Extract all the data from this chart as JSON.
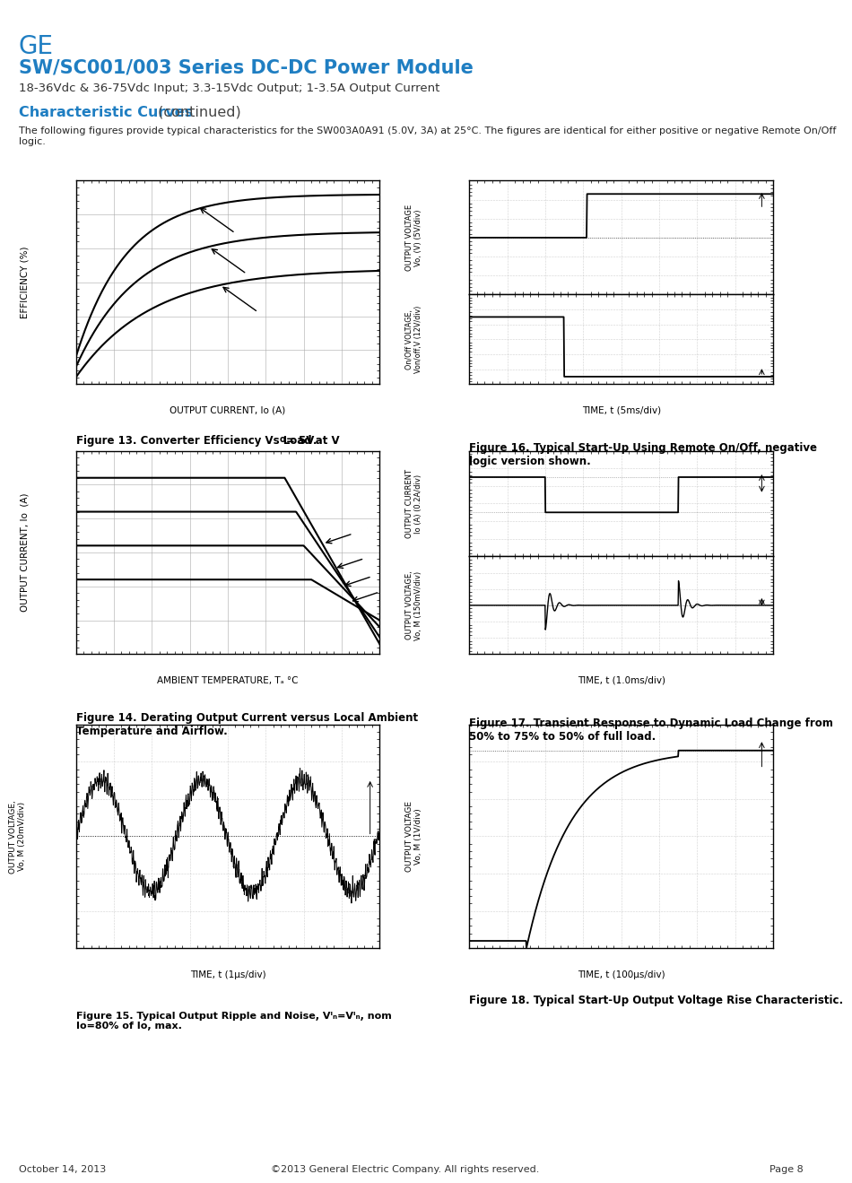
{
  "title_ge": "GE",
  "title_main": "SW/SC001/003 Series DC-DC Power Module",
  "title_sub": "18-36Vdc & 36-75Vdc Input; 3.3-15Vdc Output; 1-3.5A Output Current",
  "section_title": "Characteristic Curves",
  "section_subtitle": " (continued)",
  "body_text": "The following figures provide typical characteristics for the SW003A0A91 (5.0V, 3A) at 25°C. The figures are identical for either positive or negative Remote On/Off logic.",
  "fig13_xlabel": "OUTPUT CURRENT, Io (A)",
  "fig13_ylabel": "EFFICIENCY (%)",
  "fig13_caption_bold": "Figure 13. Converter Efficiency Vs Load at V",
  "fig13_caption_sub": "o",
  "fig13_caption_end": "= 5V.",
  "fig14_xlabel": "AMBIENT TEMPERATURE, Tₐ °C",
  "fig14_ylabel": "OUTPUT CURRENT, Io  (A)",
  "fig14_caption": "Figure 14. Derating Output Current versus Local Ambient\nTemperature and Airflow.",
  "fig15_xlabel": "TIME, t (1μs/div)",
  "fig15_ylabel_line1": "OUTPUT VOLTAGE,",
  "fig15_ylabel_line2": "Vo, M (20mV/div)",
  "fig15_caption": "Figure 15. Typical Output Ripple and Noise, Vᴵₙ=Vᴵₙ, nom\nIo=80% of Io, max.",
  "fig16_xlabel": "TIME, t (5ms/div)",
  "fig16_ylabel1_line1": "OUTPUT VOLTAGE",
  "fig16_ylabel1_line2": "Vo, (V) (5V/div)",
  "fig16_ylabel2_line1": "On/Off VOLTAGE,",
  "fig16_ylabel2_line2": "Von/off,V (12V/div)",
  "fig16_caption": "Figure 16. Typical Start-Up Using Remote On/Off, negative\nlogic version shown.",
  "fig17_xlabel": "TIME, t (1.0ms/div)",
  "fig17_ylabel1_line1": "OUTPUT CURRENT",
  "fig17_ylabel1_line2": "Io (A) (0.2A/div)",
  "fig17_ylabel2_line1": "OUTPUT VOLTAGE,",
  "fig17_ylabel2_line2": "Vo, M (150mV/div),",
  "fig17_caption": "Figure 17. Transient Response to Dynamic Load Change from\n50% to 75% to 50% of full load.",
  "fig18_xlabel": "TIME, t (100μs/div)",
  "fig18_ylabel_line1": "OUTPUT VOLTAGE",
  "fig18_ylabel_line2": "Vo, M (1V/div)",
  "fig18_caption": "Figure 18. Typical Start-Up Output Voltage Rise Characteristic.",
  "footer_left": "October 14, 2013",
  "footer_center": "©2013 General Electric Company. All rights reserved.",
  "footer_right": "Page 8",
  "color_blue": "#1F7EC2",
  "color_header_bg": "#909090",
  "color_grid": "#aaaaaa",
  "color_minor_grid": "#cccccc"
}
